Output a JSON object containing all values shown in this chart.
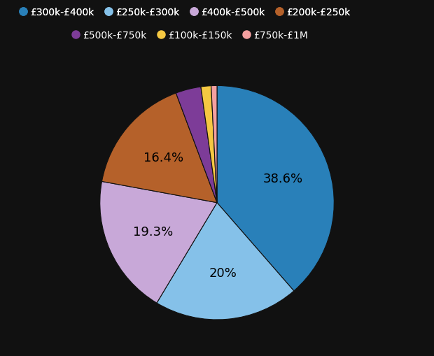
{
  "labels": [
    "£300k-£400k",
    "£250k-£300k",
    "£400k-£500k",
    "£200k-£250k",
    "£500k-£750k",
    "£100k-£150k",
    "£750k-£1M"
  ],
  "values": [
    38.6,
    20.0,
    19.3,
    16.4,
    3.5,
    1.4,
    0.8
  ],
  "colors": [
    "#2980b9",
    "#85c1e9",
    "#c8a8d8",
    "#b5612a",
    "#7d3c98",
    "#f5c842",
    "#f4a0a0"
  ],
  "pct_labels": [
    "38.6%",
    "20%",
    "19.3%",
    "16.4%",
    "",
    "",
    ""
  ],
  "background_color": "#111111",
  "text_color": "#ffffff",
  "figsize": [
    6.2,
    5.1
  ],
  "dpi": 100,
  "startangle": 90,
  "legend_ncol_row1": 4,
  "legend_ncol_row2": 3
}
